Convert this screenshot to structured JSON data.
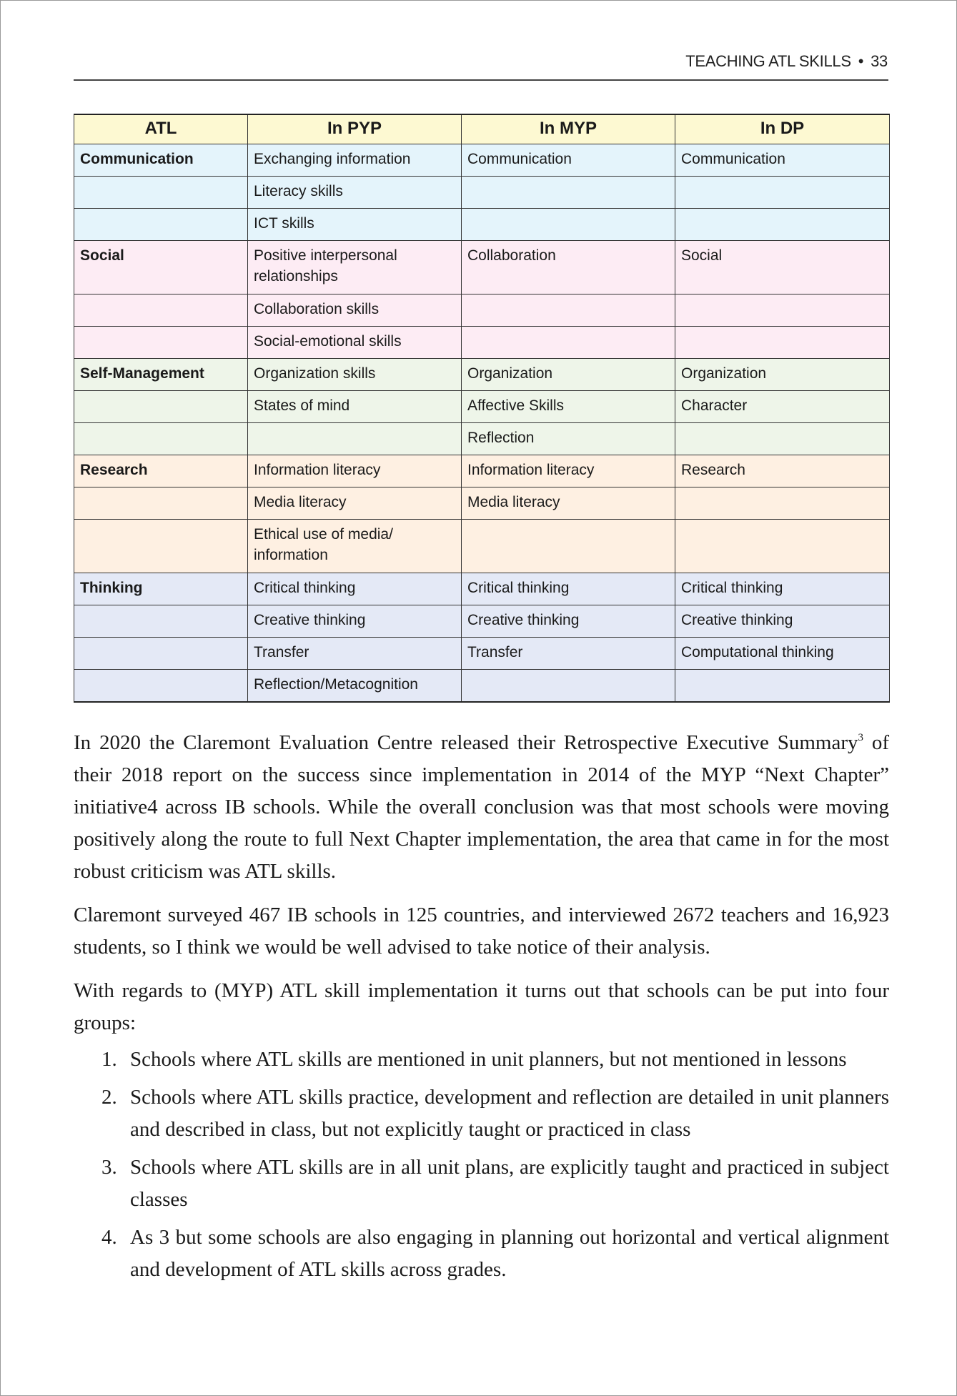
{
  "running_head": {
    "title": "TEACHING ATL SKILLS",
    "separator": "•",
    "page_number": "33"
  },
  "table": {
    "headers": [
      "ATL",
      "In PYP",
      "In MYP",
      "In DP"
    ],
    "groups": [
      {
        "atl": "Communication",
        "color": "#e4f4fb",
        "rows": [
          [
            "Exchanging information",
            "Communication",
            "Communication"
          ],
          [
            "Literacy skills",
            "",
            ""
          ],
          [
            "ICT skills",
            "",
            ""
          ]
        ]
      },
      {
        "atl": "Social",
        "color": "#fdecf4",
        "rows": [
          [
            "Positive interpersonal relationships",
            "Collaboration",
            "Social"
          ],
          [
            "Collaboration skills",
            "",
            ""
          ],
          [
            "Social-emotional skills",
            "",
            ""
          ]
        ]
      },
      {
        "atl": "Self-Management",
        "color": "#eef5e9",
        "rows": [
          [
            "Organization skills",
            "Organization",
            "Organization"
          ],
          [
            "States of mind",
            "Affective Skills",
            "Character"
          ],
          [
            "",
            "Reflection",
            ""
          ]
        ]
      },
      {
        "atl": "Research",
        "color": "#fef0e2",
        "rows": [
          [
            "Information literacy",
            "Information literacy",
            "Research"
          ],
          [
            "Media literacy",
            "Media literacy",
            ""
          ],
          [
            "Ethical use of media/ information",
            "",
            ""
          ]
        ]
      },
      {
        "atl": "Thinking",
        "color": "#e4e9f6",
        "rows": [
          [
            "Critical thinking",
            "Critical thinking",
            "Critical thinking"
          ],
          [
            "Creative thinking",
            "Creative thinking",
            "Creative thinking"
          ],
          [
            "Transfer",
            "Transfer",
            "Computational thinking"
          ],
          [
            "Reflection/Metacognition",
            "",
            ""
          ]
        ]
      }
    ]
  },
  "body": {
    "p1_a": "In 2020 the Claremont Evaluation Centre released their Retrospective Executive Summary",
    "p1_sup": "3",
    "p1_b": " of their 2018 report on the success since implementation in 2014 of the MYP “Next Chapter” initiative4 across IB schools. While the overall conclusion was that most schools were moving positively along the route to full Next Chapter implementation, the area that came in for the most robust criticism was ATL skills.",
    "p2": "Claremont surveyed 467 IB schools in 125 countries, and interviewed 2672 teachers and 16,923 students, so I think we would be well advised to take notice of their analysis.",
    "p3": "With regards to (MYP) ATL skill implementation it turns out that schools can be put into four groups:",
    "list": [
      {
        "num": "1.",
        "text": "Schools where ATL skills are mentioned in unit planners, but not mentioned in lessons"
      },
      {
        "num": "2.",
        "text": "Schools where ATL skills practice, development and reflection are detailed in unit planners and described in class, but not explicitly taught or practiced in class"
      },
      {
        "num": "3.",
        "text": "Schools where ATL skills are in all unit plans, are explicitly taught and practiced in subject classes"
      },
      {
        "num": "4.",
        "text": "As 3 but some schools are also engaging in planning out horizontal and vertical alignment and development of ATL skills across grades."
      }
    ]
  }
}
